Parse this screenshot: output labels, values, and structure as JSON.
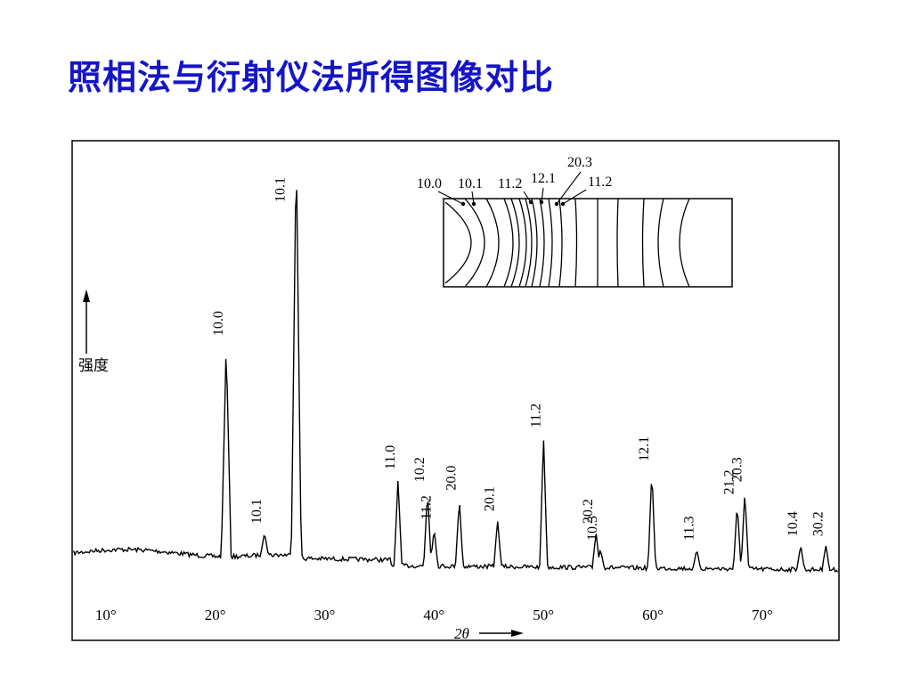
{
  "slide": {
    "title": "照相法与衍射仪法所得图像对比"
  },
  "chart_data": {
    "type": "line",
    "xlabel": "2θ",
    "ylabel": "强度",
    "x_ticks": [
      "10°",
      "20°",
      "30°",
      "40°",
      "50°",
      "60°",
      "70°"
    ],
    "xlim": [
      7,
      77
    ],
    "ylim": [
      0,
      100
    ],
    "grid": false,
    "peaks": [
      {
        "x": 21.0,
        "y": 52,
        "label": "10.0"
      },
      {
        "x": 24.5,
        "y": 7,
        "label": "10.1"
      },
      {
        "x": 27.4,
        "y": 100,
        "label": "10.1"
      },
      {
        "x": 36.7,
        "y": 20,
        "label": "11.0"
      },
      {
        "x": 39.4,
        "y": 17,
        "label": "10.2"
      },
      {
        "x": 40.0,
        "y": 8,
        "label": "11.2"
      },
      {
        "x": 42.3,
        "y": 15,
        "label": "20.0"
      },
      {
        "x": 45.8,
        "y": 10,
        "label": "20.1"
      },
      {
        "x": 50.0,
        "y": 30,
        "label": "11.2"
      },
      {
        "x": 54.8,
        "y": 7,
        "label": "20.2"
      },
      {
        "x": 55.2,
        "y": 3,
        "label": "10.3"
      },
      {
        "x": 59.9,
        "y": 22,
        "label": "12.1"
      },
      {
        "x": 64.0,
        "y": 3,
        "label": "11.3"
      },
      {
        "x": 67.7,
        "y": 14,
        "label": "21.2"
      },
      {
        "x": 68.4,
        "y": 17,
        "label": "20.3"
      },
      {
        "x": 73.5,
        "y": 4,
        "label": "10.4"
      },
      {
        "x": 75.8,
        "y": 4,
        "label": "30.2"
      }
    ],
    "inset": {
      "description_labels": [
        "10.0",
        "10.1",
        "11.2",
        "12.1",
        "20.3",
        "11.2"
      ]
    }
  }
}
